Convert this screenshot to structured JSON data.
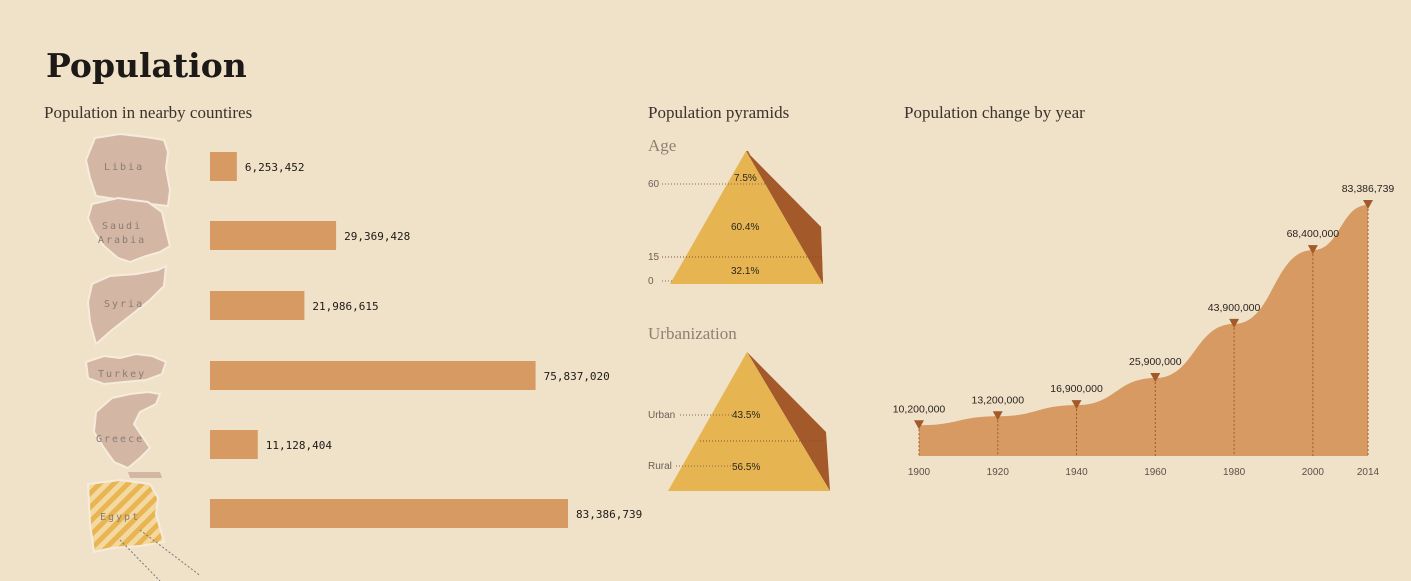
{
  "title": "Population",
  "sections": {
    "countries": "Population in nearby countires",
    "pyramids": "Population pyramids",
    "change": "Population change by year"
  },
  "pyramids": {
    "age": {
      "title": "Age",
      "ticks": [
        "60",
        "15",
        "0"
      ],
      "segments": [
        "7.5%",
        "60.4%",
        "32.1%"
      ]
    },
    "urban": {
      "title": "Urbanization",
      "labels": [
        "Urban",
        "Rural"
      ],
      "segments": [
        "43.5%",
        "56.5%"
      ]
    }
  },
  "colors": {
    "bar": "#d69a62",
    "map": "#d4b6a4",
    "pyramid_front": "#e6b552",
    "pyramid_side": "#a3592a",
    "area": "#d69a62",
    "marker": "#a3592a",
    "egypt": "#e9b553"
  },
  "chart_data": [
    {
      "type": "bar",
      "orientation": "horizontal",
      "categories": [
        "Libia",
        "Saudi Arabia",
        "Syria",
        "Turkey",
        "Greece",
        "Egypt"
      ],
      "values": [
        6253452,
        29369428,
        21986615,
        75837020,
        11128404,
        83386739
      ],
      "value_labels": [
        "6,253,452",
        "29,369,428",
        "21,986,615",
        "75,837,020",
        "11,128,404",
        "83,386,739"
      ],
      "title": "Population in nearby countires"
    },
    {
      "type": "area",
      "x": [
        1900,
        1920,
        1940,
        1960,
        1980,
        2000,
        2014
      ],
      "values": [
        10200000,
        13200000,
        16900000,
        25900000,
        43900000,
        68400000,
        83386739
      ],
      "value_labels": [
        "10,200,000",
        "13,200,000",
        "16,900,000",
        "25,900,000",
        "43,900,000",
        "68,400,000",
        "83,386,739"
      ],
      "title": "Population change by year"
    }
  ]
}
